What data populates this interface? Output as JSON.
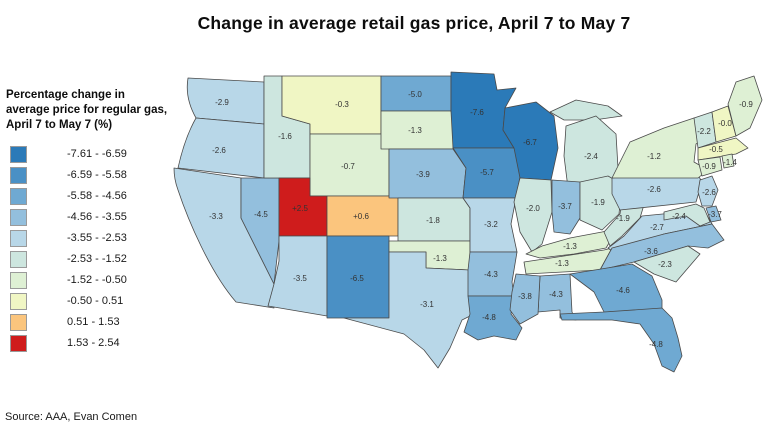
{
  "title": "Change in average retail gas price, April 7 to May 7",
  "legend_title": "Percentage change in average price for regular gas, April 7 to May 7 (%)",
  "source": "Source: AAA, Evan Comen",
  "chart_data": {
    "type": "heatmap",
    "subtype": "us-state-choropleth",
    "title": "Change in average retail gas price, April 7 to May 7",
    "legend_title": "Percentage change in average price for regular gas, April 7 to May 7 (%)",
    "unit": "%",
    "legend_position": "left",
    "bin_edges": [
      -7.61,
      -6.59,
      -5.58,
      -4.56,
      -3.55,
      -2.53,
      -1.52,
      -0.5,
      0.51,
      1.53,
      2.54
    ],
    "bin_labels": [
      "-7.61 - -6.59",
      "-6.59 - -5.58",
      "-5.58 - -4.56",
      "-4.56 - -3.55",
      "-3.55 - -2.53",
      "-2.53 - -1.52",
      "-1.52 - -0.50",
      "-0.50 - 0.51",
      "0.51 - 1.53",
      "1.53 - 2.54"
    ],
    "bin_colors": [
      "#2b7ab8",
      "#4a90c5",
      "#6fa9d2",
      "#93bfdd",
      "#b8d7e8",
      "#cde6df",
      "#def0d4",
      "#f0f6c4",
      "#fbc57d",
      "#cf1c1c"
    ],
    "states": [
      {
        "id": "WA",
        "label": "-2.9",
        "value": -2.9
      },
      {
        "id": "OR",
        "label": "-2.6",
        "value": -2.6
      },
      {
        "id": "CA",
        "label": "-3.3",
        "value": -3.3
      },
      {
        "id": "NV",
        "label": "-4.5",
        "value": -4.5
      },
      {
        "id": "ID",
        "label": "-1.6",
        "value": -1.6
      },
      {
        "id": "MT",
        "label": "-0.3",
        "value": -0.3
      },
      {
        "id": "WY",
        "label": "-0.7",
        "value": -0.7
      },
      {
        "id": "UT",
        "label": "+2.5",
        "value": 2.5
      },
      {
        "id": "CO",
        "label": "+0.6",
        "value": 0.6
      },
      {
        "id": "AZ",
        "label": "-3.5",
        "value": -3.5
      },
      {
        "id": "NM",
        "label": "-6.5",
        "value": -6.5
      },
      {
        "id": "ND",
        "label": "-5.0",
        "value": -5.0
      },
      {
        "id": "SD",
        "label": "-1.3",
        "value": -1.3
      },
      {
        "id": "NE",
        "label": "-3.9",
        "value": -3.9
      },
      {
        "id": "KS",
        "label": "-1.8",
        "value": -1.8
      },
      {
        "id": "OK",
        "label": "-1.3",
        "value": -1.3
      },
      {
        "id": "TX",
        "label": "-3.1",
        "value": -3.1
      },
      {
        "id": "MN",
        "label": "-7.6",
        "value": -7.6
      },
      {
        "id": "IA",
        "label": "-5.7",
        "value": -5.7
      },
      {
        "id": "MO",
        "label": "-3.2",
        "value": -3.2
      },
      {
        "id": "AR",
        "label": "-4.3",
        "value": -4.3
      },
      {
        "id": "LA",
        "label": "-4.8",
        "value": -4.8
      },
      {
        "id": "WI",
        "label": "-6.7",
        "value": -6.7
      },
      {
        "id": "MI",
        "label": "-2.4",
        "value": -2.4
      },
      {
        "id": "IL",
        "label": "-2.0",
        "value": -2.0
      },
      {
        "id": "IN",
        "label": "-3.7",
        "value": -3.7
      },
      {
        "id": "OH",
        "label": "-1.9",
        "value": -1.9
      },
      {
        "id": "KY",
        "label": "-1.3",
        "value": -1.3
      },
      {
        "id": "TN",
        "label": "-1.3",
        "value": -1.3
      },
      {
        "id": "WV",
        "label": "-1.9",
        "value": -1.9
      },
      {
        "id": "VA",
        "label": "-2.7",
        "value": -2.7
      },
      {
        "id": "NC",
        "label": "-3.6",
        "value": -3.6
      },
      {
        "id": "SC",
        "label": "-2.3",
        "value": -2.3
      },
      {
        "id": "GA",
        "label": "-4.6",
        "value": -4.6
      },
      {
        "id": "AL",
        "label": "-4.3",
        "value": -4.3
      },
      {
        "id": "MS",
        "label": "-3.8",
        "value": -3.8
      },
      {
        "id": "FL",
        "label": "-4.8",
        "value": -4.8
      },
      {
        "id": "PA",
        "label": "-2.6",
        "value": -2.6
      },
      {
        "id": "NY",
        "label": "-1.2",
        "value": -1.2
      },
      {
        "id": "NJ",
        "label": "-2.6",
        "value": -2.6
      },
      {
        "id": "DE",
        "label": "-3.7",
        "value": -3.7
      },
      {
        "id": "MD",
        "label": "-2.4",
        "value": -2.4
      },
      {
        "id": "CT",
        "label": "-0.9",
        "value": -0.9
      },
      {
        "id": "RI",
        "label": "-1.4",
        "value": -1.4
      },
      {
        "id": "MA",
        "label": "-0.5",
        "value": -0.5
      },
      {
        "id": "VT",
        "label": "-2.2",
        "value": -2.2
      },
      {
        "id": "NH",
        "label": "-0.0",
        "value": -0.0
      },
      {
        "id": "ME",
        "label": "-0.9",
        "value": -0.9
      }
    ]
  }
}
